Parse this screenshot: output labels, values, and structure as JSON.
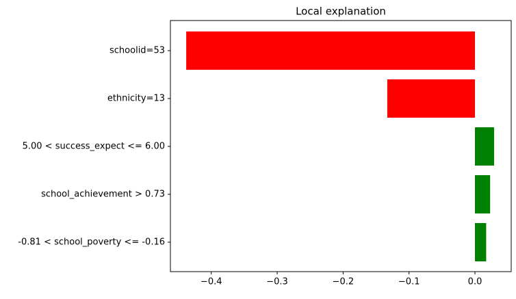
{
  "chart_data": {
    "type": "barh",
    "title": "Local explanation",
    "categories": [
      "schoolid=53",
      "ethnicity=13",
      "5.00 < success_expect <= 6.00",
      "school_achievement > 0.73",
      "-0.81 < school_poverty <= -0.16"
    ],
    "values": [
      -0.438,
      -0.133,
      0.029,
      0.023,
      0.017
    ],
    "colors": [
      "#ff0000",
      "#ff0000",
      "#008000",
      "#008000",
      "#008000"
    ],
    "xlim": [
      -0.462,
      0.055
    ],
    "xticks": [
      {
        "value": -0.4,
        "label": "−0.4"
      },
      {
        "value": -0.3,
        "label": "−0.3"
      },
      {
        "value": -0.2,
        "label": "−0.2"
      },
      {
        "value": -0.1,
        "label": "−0.1"
      },
      {
        "value": 0.0,
        "label": "0.0"
      }
    ]
  }
}
